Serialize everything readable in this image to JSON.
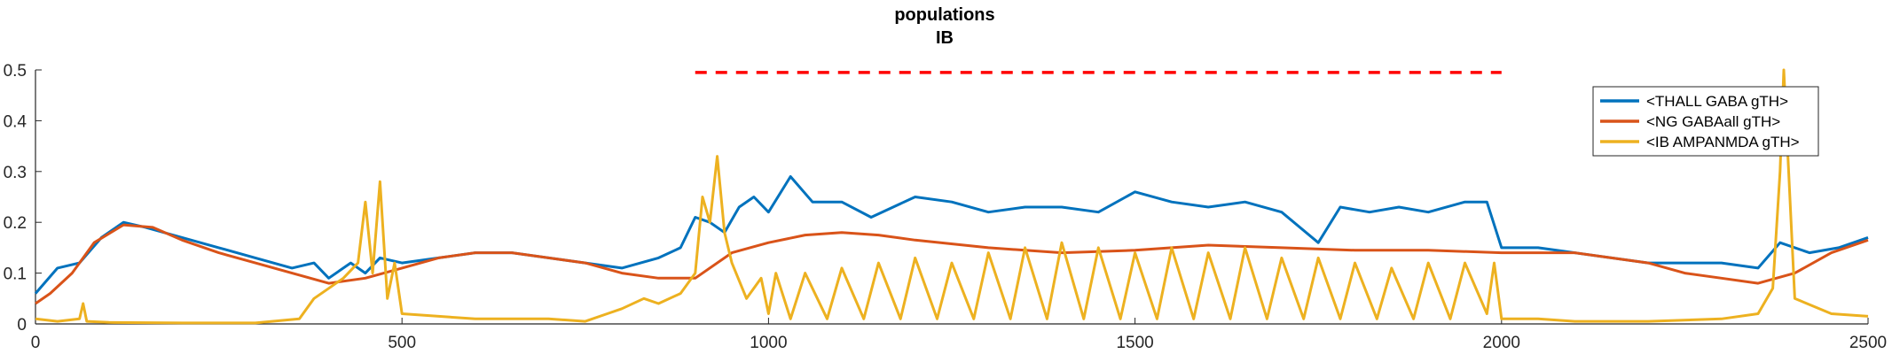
{
  "chart_data": {
    "type": "line",
    "title": "populations",
    "subtitle": "IB",
    "xlabel": "",
    "ylabel": "",
    "xlim": [
      0,
      2500
    ],
    "ylim": [
      0,
      0.5
    ],
    "xticks": [
      0,
      500,
      1000,
      1500,
      2000,
      2500
    ],
    "yticks": [
      0,
      0.1,
      0.2,
      0.3,
      0.4,
      0.5
    ],
    "xtick_labels": [
      "0",
      "500",
      "1000",
      "1500",
      "2000",
      "2500"
    ],
    "ytick_labels": [
      "0",
      "0.1",
      "0.2",
      "0.3",
      "0.4",
      "0.5"
    ],
    "grid": false,
    "legend_position": "top-right",
    "series": [
      {
        "name": "<THALL GABA gTH>",
        "color": "#0072BD",
        "x": [
          0,
          30,
          60,
          90,
          120,
          150,
          200,
          250,
          300,
          350,
          380,
          400,
          430,
          450,
          470,
          500,
          550,
          600,
          650,
          700,
          750,
          800,
          850,
          880,
          900,
          920,
          940,
          960,
          980,
          1000,
          1030,
          1060,
          1100,
          1140,
          1200,
          1250,
          1300,
          1350,
          1400,
          1450,
          1500,
          1550,
          1600,
          1650,
          1700,
          1750,
          1780,
          1820,
          1860,
          1900,
          1950,
          1980,
          2000,
          2050,
          2100,
          2150,
          2200,
          2250,
          2300,
          2350,
          2380,
          2420,
          2460,
          2500
        ],
        "values": [
          0.06,
          0.11,
          0.12,
          0.17,
          0.2,
          0.19,
          0.17,
          0.15,
          0.13,
          0.11,
          0.12,
          0.09,
          0.12,
          0.1,
          0.13,
          0.12,
          0.13,
          0.14,
          0.14,
          0.13,
          0.12,
          0.11,
          0.13,
          0.15,
          0.21,
          0.2,
          0.18,
          0.23,
          0.25,
          0.22,
          0.29,
          0.24,
          0.24,
          0.21,
          0.25,
          0.24,
          0.22,
          0.23,
          0.23,
          0.22,
          0.26,
          0.24,
          0.23,
          0.24,
          0.22,
          0.16,
          0.23,
          0.22,
          0.23,
          0.22,
          0.24,
          0.24,
          0.15,
          0.15,
          0.14,
          0.13,
          0.12,
          0.12,
          0.12,
          0.11,
          0.16,
          0.14,
          0.15,
          0.17
        ]
      },
      {
        "name": "<NG GABAall gTH>",
        "color": "#D95319",
        "x": [
          0,
          20,
          50,
          80,
          120,
          160,
          200,
          250,
          300,
          350,
          400,
          450,
          500,
          550,
          600,
          650,
          700,
          750,
          800,
          850,
          900,
          950,
          1000,
          1050,
          1100,
          1150,
          1200,
          1300,
          1400,
          1500,
          1600,
          1700,
          1800,
          1900,
          2000,
          2050,
          2100,
          2150,
          2200,
          2250,
          2300,
          2350,
          2400,
          2450,
          2500
        ],
        "values": [
          0.04,
          0.06,
          0.1,
          0.16,
          0.195,
          0.19,
          0.165,
          0.14,
          0.12,
          0.1,
          0.08,
          0.09,
          0.11,
          0.13,
          0.14,
          0.14,
          0.13,
          0.12,
          0.1,
          0.09,
          0.09,
          0.14,
          0.16,
          0.175,
          0.18,
          0.175,
          0.165,
          0.15,
          0.14,
          0.145,
          0.155,
          0.15,
          0.145,
          0.145,
          0.14,
          0.14,
          0.14,
          0.13,
          0.12,
          0.1,
          0.09,
          0.08,
          0.1,
          0.14,
          0.165
        ]
      },
      {
        "name": "<IB AMPANMDA gTH>",
        "color": "#EDB120",
        "x": [
          0,
          30,
          60,
          65,
          70,
          100,
          200,
          300,
          360,
          380,
          400,
          420,
          440,
          450,
          460,
          470,
          480,
          490,
          500,
          600,
          700,
          750,
          780,
          800,
          830,
          850,
          880,
          900,
          910,
          920,
          930,
          940,
          950,
          970,
          990,
          1000,
          1010,
          1030,
          1050,
          1080,
          1100,
          1130,
          1150,
          1180,
          1200,
          1230,
          1250,
          1280,
          1300,
          1330,
          1350,
          1380,
          1400,
          1430,
          1450,
          1480,
          1500,
          1530,
          1550,
          1580,
          1600,
          1630,
          1650,
          1680,
          1700,
          1730,
          1750,
          1780,
          1800,
          1830,
          1850,
          1880,
          1900,
          1930,
          1950,
          1980,
          1990,
          2000,
          2050,
          2100,
          2200,
          2300,
          2350,
          2370,
          2380,
          2385,
          2390,
          2400,
          2450,
          2500
        ],
        "values": [
          0.01,
          0.005,
          0.01,
          0.04,
          0.005,
          0.003,
          0.002,
          0.002,
          0.01,
          0.05,
          0.07,
          0.09,
          0.12,
          0.24,
          0.1,
          0.28,
          0.05,
          0.12,
          0.02,
          0.01,
          0.01,
          0.005,
          0.02,
          0.03,
          0.05,
          0.04,
          0.06,
          0.1,
          0.25,
          0.2,
          0.33,
          0.18,
          0.12,
          0.05,
          0.09,
          0.02,
          0.1,
          0.01,
          0.1,
          0.01,
          0.11,
          0.01,
          0.12,
          0.01,
          0.13,
          0.01,
          0.12,
          0.01,
          0.14,
          0.01,
          0.15,
          0.01,
          0.16,
          0.01,
          0.15,
          0.01,
          0.14,
          0.01,
          0.15,
          0.01,
          0.14,
          0.01,
          0.15,
          0.01,
          0.13,
          0.01,
          0.13,
          0.01,
          0.12,
          0.01,
          0.11,
          0.01,
          0.12,
          0.01,
          0.12,
          0.02,
          0.12,
          0.01,
          0.01,
          0.005,
          0.005,
          0.01,
          0.02,
          0.07,
          0.3,
          0.5,
          0.35,
          0.05,
          0.02,
          0.015
        ]
      }
    ],
    "annotations": [
      {
        "type": "dashed-line",
        "color": "#FF0000",
        "x": [
          900,
          2000
        ],
        "y": 0.495
      }
    ]
  }
}
